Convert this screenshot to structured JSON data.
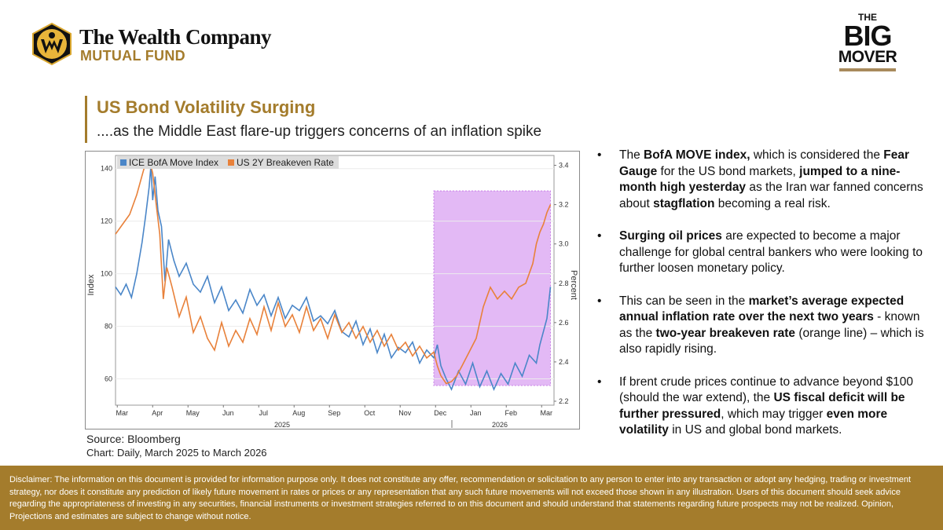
{
  "brand": {
    "name": "The Wealth Company",
    "sub": "MUTUAL FUND",
    "badge_the": "THE",
    "badge_big": "BIG",
    "badge_mover": "MOVER",
    "gold": "#a47c2c"
  },
  "slide": {
    "title": "US Bond Volatility Surging",
    "subtitle": "....as the Middle East flare-up triggers concerns of an inflation spike"
  },
  "chart_data": {
    "type": "line",
    "title": "",
    "x_tick_labels": [
      "Mar",
      "Apr",
      "May",
      "Jun",
      "Jul",
      "Aug",
      "Sep",
      "Oct",
      "Nov",
      "Dec",
      "Jan",
      "Feb",
      "Mar"
    ],
    "x_year_labels": [
      "2025",
      "2026"
    ],
    "ylabel_left": "Index",
    "ylabel_right": "Percent",
    "ylim_left": [
      50,
      145
    ],
    "ylim_right": [
      2.18,
      3.45
    ],
    "yticks_left": [
      60,
      80,
      100,
      120,
      140
    ],
    "yticks_right": [
      "2.2",
      "2.4",
      "2.6",
      "2.8",
      "3.0",
      "3.2",
      "3.4"
    ],
    "legend_position": "top-left",
    "highlight": {
      "from_month": 9,
      "to_month": 12.3,
      "color": "#e3b9f5"
    },
    "series": [
      {
        "name": "ICE BofA Move Index",
        "axis": "left",
        "color": "#4a86c8",
        "x": [
          0,
          0.15,
          0.3,
          0.45,
          0.6,
          0.75,
          0.85,
          0.95,
          1.0,
          1.05,
          1.12,
          1.2,
          1.3,
          1.4,
          1.5,
          1.65,
          1.8,
          2.0,
          2.2,
          2.4,
          2.6,
          2.8,
          3.0,
          3.2,
          3.4,
          3.6,
          3.8,
          4.0,
          4.2,
          4.4,
          4.6,
          4.8,
          5.0,
          5.2,
          5.4,
          5.6,
          5.8,
          6.0,
          6.2,
          6.4,
          6.6,
          6.8,
          7.0,
          7.2,
          7.4,
          7.6,
          7.8,
          8.0,
          8.2,
          8.4,
          8.6,
          8.8,
          9.0,
          9.1,
          9.2,
          9.35,
          9.5,
          9.7,
          9.9,
          10.1,
          10.3,
          10.5,
          10.7,
          10.9,
          11.1,
          11.3,
          11.5,
          11.7,
          11.9,
          12.0,
          12.1,
          12.2,
          12.3
        ],
        "values": [
          95,
          92,
          96,
          91,
          100,
          112,
          122,
          133,
          141,
          128,
          137,
          124,
          118,
          97,
          113,
          105,
          99,
          104,
          96,
          93,
          99,
          89,
          95,
          86,
          90,
          85,
          94,
          88,
          92,
          84,
          91,
          83,
          88,
          86,
          91,
          82,
          84,
          81,
          86,
          78,
          76,
          82,
          73,
          79,
          70,
          77,
          68,
          72,
          70,
          74,
          66,
          71,
          68,
          73,
          65,
          60,
          56,
          63,
          58,
          66,
          57,
          63,
          56,
          62,
          58,
          66,
          61,
          69,
          66,
          73,
          78,
          83,
          95
        ]
      },
      {
        "name": "US 2Y Breakeven Rate",
        "axis": "right",
        "color": "#e8813a",
        "x": [
          0,
          0.2,
          0.4,
          0.6,
          0.8,
          0.95,
          1.05,
          1.15,
          1.25,
          1.35,
          1.45,
          1.6,
          1.8,
          2.0,
          2.2,
          2.4,
          2.6,
          2.8,
          3.0,
          3.2,
          3.4,
          3.6,
          3.8,
          4.0,
          4.2,
          4.4,
          4.6,
          4.8,
          5.0,
          5.2,
          5.4,
          5.6,
          5.8,
          6.0,
          6.2,
          6.4,
          6.6,
          6.8,
          7.0,
          7.2,
          7.4,
          7.6,
          7.8,
          8.0,
          8.2,
          8.4,
          8.6,
          8.8,
          9.0,
          9.1,
          9.2,
          9.35,
          9.5,
          9.65,
          9.8,
          10.0,
          10.2,
          10.4,
          10.6,
          10.8,
          11.0,
          11.2,
          11.4,
          11.6,
          11.8,
          11.9,
          12.0,
          12.1,
          12.2,
          12.3
        ],
        "values": [
          3.05,
          3.1,
          3.15,
          3.25,
          3.38,
          3.43,
          3.36,
          3.2,
          3.05,
          2.72,
          2.88,
          2.78,
          2.63,
          2.73,
          2.55,
          2.63,
          2.52,
          2.46,
          2.6,
          2.48,
          2.56,
          2.5,
          2.62,
          2.54,
          2.68,
          2.56,
          2.7,
          2.58,
          2.64,
          2.55,
          2.68,
          2.56,
          2.62,
          2.52,
          2.64,
          2.55,
          2.6,
          2.52,
          2.58,
          2.5,
          2.56,
          2.48,
          2.54,
          2.46,
          2.5,
          2.43,
          2.48,
          2.42,
          2.45,
          2.38,
          2.33,
          2.29,
          2.3,
          2.33,
          2.38,
          2.45,
          2.52,
          2.68,
          2.78,
          2.72,
          2.76,
          2.72,
          2.78,
          2.8,
          2.9,
          3.0,
          3.06,
          3.1,
          3.16,
          3.2
        ]
      }
    ]
  },
  "notes": {
    "source": "Source: Bloomberg",
    "chart_caption": "Chart: Daily, March 2025 to March 2026"
  },
  "bullets": [
    {
      "marker": "•",
      "parts": [
        {
          "text": "The ",
          "bold": false
        },
        {
          "text": "BofA MOVE index,",
          "bold": true
        },
        {
          "text": " which is considered the ",
          "bold": false
        },
        {
          "text": "Fear Gauge",
          "bold": true
        },
        {
          "text": " for the US bond markets, ",
          "bold": false
        },
        {
          "text": "jumped to a nine-month high yesterday",
          "bold": true
        },
        {
          "text": " as the Iran war fanned concerns about ",
          "bold": false
        },
        {
          "text": "stagflation",
          "bold": true
        },
        {
          "text": " becoming a real risk.",
          "bold": false
        }
      ]
    },
    {
      "marker": "•",
      "parts": [
        {
          "text": "Surging oil prices",
          "bold": true
        },
        {
          "text": " are expected to become a major challenge for global central bankers who were looking to further loosen monetary policy.",
          "bold": false
        }
      ]
    },
    {
      "marker": "•",
      "parts": [
        {
          "text": "This can be seen in the ",
          "bold": false
        },
        {
          "text": "market’s average expected annual inflation rate over the next two years",
          "bold": true
        },
        {
          "text": " - known as the ",
          "bold": false
        },
        {
          "text": "two-year breakeven rate",
          "bold": true
        },
        {
          "text": " (orange line) – which is also rapidly rising.",
          "bold": false
        }
      ]
    },
    {
      "marker": "•",
      "parts": [
        {
          "text": "If brent crude prices continue to advance beyond $100 (should the war extend), the ",
          "bold": false
        },
        {
          "text": "US fiscal deficit will be further pressured",
          "bold": true
        },
        {
          "text": ", which may trigger ",
          "bold": false
        },
        {
          "text": "even more volatility",
          "bold": true
        },
        {
          "text": " in US and global bond markets.",
          "bold": false
        }
      ]
    }
  ],
  "disclaimer": "Disclaimer: The information on this document is provided for information purpose only. It does not constitute any offer, recommendation or solicitation to any person to enter into any transaction or adopt any hedging, trading or investment strategy, nor does it constitute any prediction of likely future movement in rates or prices or any representation that any such future movements will not exceed those shown in any illustration. Users of this document should seek advice regarding the appropriateness of investing in any securities, financial instruments or investment strategies referred to on this document and should understand that statements regarding future prospects may not be realized. Opinion, Projections and estimates are subject to change without notice."
}
